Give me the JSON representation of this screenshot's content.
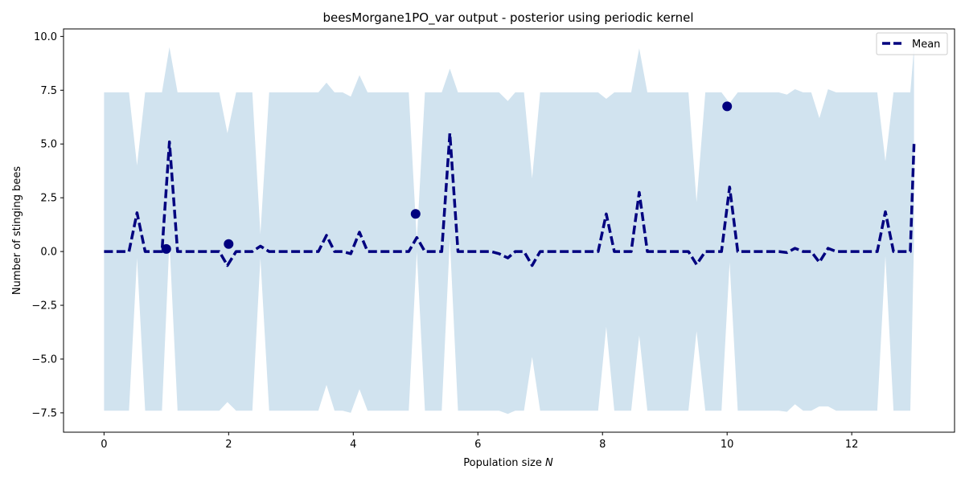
{
  "chart_data": {
    "type": "line",
    "title": "beesMorgane1PO_var output - posterior using periodic kernel",
    "xlabel": "Population size",
    "xlabel_var": "N",
    "ylabel": "Number of stinging bees",
    "xlim": [
      -0.65,
      13.65
    ],
    "ylim": [
      -8.4,
      10.35
    ],
    "xticks": [
      0,
      2,
      4,
      6,
      8,
      10,
      12
    ],
    "yticks": [
      -7.5,
      -5.0,
      -2.5,
      0.0,
      2.5,
      5.0,
      7.5,
      10.0
    ],
    "xtick_labels": [
      "0",
      "2",
      "4",
      "6",
      "8",
      "10",
      "12"
    ],
    "ytick_labels": [
      "−7.5",
      "−5.0",
      "−2.5",
      "0.0",
      "2.5",
      "5.0",
      "7.5",
      "10.0"
    ],
    "legend": {
      "placement": "top-right",
      "entries": [
        "Mean"
      ]
    },
    "colors": {
      "mean": "#00007f",
      "band": "#d1e3ef",
      "points": "#00007f"
    },
    "series": [
      {
        "name": "Mean",
        "style": "dashed",
        "x": [
          0,
          0.4,
          0.53,
          0.66,
          0.93,
          1.05,
          1.18,
          1.85,
          1.98,
          2.12,
          2.38,
          2.51,
          2.65,
          3.44,
          3.57,
          3.7,
          3.83,
          3.96,
          4.1,
          4.23,
          4.89,
          5.02,
          5.15,
          5.42,
          5.55,
          5.68,
          6.21,
          6.34,
          6.48,
          6.6,
          6.74,
          6.87,
          7.0,
          7.13,
          7.93,
          8.06,
          8.19,
          8.46,
          8.59,
          8.72,
          9.25,
          9.38,
          9.51,
          9.65,
          9.78,
          9.91,
          10.04,
          10.17,
          10.83,
          10.96,
          11.09,
          11.22,
          11.35,
          11.48,
          11.62,
          11.75,
          12.41,
          12.54,
          12.67,
          12.94,
          13.0
        ],
        "y": [
          0,
          0,
          1.8,
          0,
          0,
          5.1,
          0,
          0,
          -0.65,
          0,
          0,
          0.25,
          0,
          0,
          0.75,
          0,
          0,
          -0.1,
          0.9,
          0,
          0,
          0.65,
          0,
          0,
          5.5,
          0,
          0,
          -0.1,
          -0.3,
          0,
          0,
          -0.65,
          0,
          0,
          0,
          1.75,
          0,
          0,
          2.75,
          0,
          0,
          0,
          -0.6,
          0,
          0,
          0,
          3.0,
          0,
          0,
          -0.05,
          0.15,
          0,
          0,
          -0.5,
          0.15,
          0,
          0,
          1.85,
          0,
          0,
          5.0
        ]
      }
    ],
    "band": {
      "x": [
        0,
        0.4,
        0.53,
        0.66,
        0.93,
        1.05,
        1.18,
        1.85,
        1.98,
        2.12,
        2.38,
        2.51,
        2.65,
        3.44,
        3.57,
        3.7,
        3.83,
        3.96,
        4.1,
        4.23,
        4.89,
        5.02,
        5.15,
        5.42,
        5.55,
        5.68,
        6.21,
        6.34,
        6.48,
        6.6,
        6.74,
        6.87,
        7.0,
        7.13,
        7.93,
        8.06,
        8.19,
        8.46,
        8.59,
        8.72,
        9.25,
        9.38,
        9.51,
        9.65,
        9.78,
        9.91,
        10.04,
        10.17,
        10.83,
        10.96,
        11.09,
        11.22,
        11.35,
        11.48,
        11.62,
        11.75,
        12.41,
        12.54,
        12.67,
        12.94,
        13.0
      ],
      "upper": [
        7.4,
        7.4,
        4.0,
        7.4,
        7.4,
        9.5,
        7.4,
        7.4,
        5.5,
        7.4,
        7.4,
        0.8,
        7.4,
        7.4,
        7.85,
        7.4,
        7.4,
        7.2,
        8.2,
        7.4,
        7.4,
        0.5,
        7.4,
        7.4,
        8.5,
        7.4,
        7.4,
        7.4,
        7.0,
        7.4,
        7.4,
        3.4,
        7.4,
        7.4,
        7.4,
        7.1,
        7.4,
        7.4,
        9.45,
        7.4,
        7.4,
        7.4,
        2.3,
        7.4,
        7.4,
        7.4,
        6.9,
        7.4,
        7.4,
        7.3,
        7.55,
        7.4,
        7.4,
        6.2,
        7.55,
        7.4,
        7.4,
        4.2,
        7.4,
        7.4,
        9.5
      ],
      "lower": [
        -7.4,
        -7.4,
        -0.3,
        -7.4,
        -7.4,
        0.5,
        -7.4,
        -7.4,
        -7.0,
        -7.4,
        -7.4,
        -0.3,
        -7.4,
        -7.4,
        -6.2,
        -7.4,
        -7.4,
        -7.5,
        -6.4,
        -7.4,
        -7.4,
        0.0,
        -7.4,
        -7.4,
        0.6,
        -7.4,
        -7.4,
        -7.4,
        -7.55,
        -7.4,
        -7.4,
        -4.9,
        -7.4,
        -7.4,
        -7.4,
        -3.5,
        -7.4,
        -7.4,
        -3.9,
        -7.4,
        -7.4,
        -7.4,
        -3.7,
        -7.4,
        -7.4,
        -7.4,
        -0.5,
        -7.4,
        -7.4,
        -7.45,
        -7.1,
        -7.4,
        -7.4,
        -7.2,
        -7.2,
        -7.4,
        -7.4,
        -0.2,
        -7.4,
        -7.4,
        0.5
      ]
    },
    "points": {
      "x": [
        1.0,
        2.0,
        5.0,
        10.0
      ],
      "y": [
        0.12,
        0.35,
        1.75,
        6.75
      ]
    }
  }
}
